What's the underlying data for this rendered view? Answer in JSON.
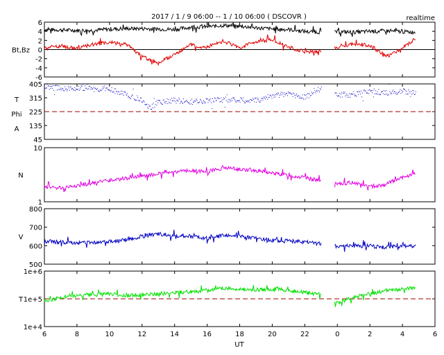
{
  "chart_data": {
    "type": "line",
    "title": "2017 / 1 / 9   06:00 --  1 / 10  06:00 ( DSCOVR )",
    "subtitle": "realtime",
    "xlabel": "UT",
    "x_ticks": [
      "6",
      "8",
      "10",
      "12",
      "14",
      "16",
      "18",
      "20",
      "22",
      "0",
      "2",
      "4",
      "6"
    ],
    "data_gap_hours": [
      23.0,
      23.8
    ],
    "panels": [
      {
        "id": "bt-bz",
        "ylabel": "Bt,Bz",
        "ylim": [
          -6,
          6
        ],
        "y_ticks": [
          "6",
          "4",
          "2",
          "0",
          "-2",
          "-4",
          "-6"
        ],
        "reference_line": {
          "value": 0,
          "style": "solid",
          "color": "#000000"
        },
        "series": [
          {
            "name": "Bt",
            "color": "#000000",
            "x": [
              6,
              7,
              8,
              9,
              10,
              11,
              12,
              13,
              14,
              15,
              16,
              17,
              18,
              19,
              20,
              21,
              22,
              23,
              24,
              25,
              26,
              27,
              28,
              28.8
            ],
            "values": [
              4.4,
              4.3,
              4.2,
              4.2,
              4.5,
              4.6,
              4.6,
              4.5,
              4.4,
              4.9,
              5.0,
              5.3,
              5.1,
              4.8,
              4.5,
              4.4,
              4.0,
              3.8,
              3.9,
              3.8,
              4.0,
              4.1,
              3.9,
              3.8
            ]
          },
          {
            "name": "Bz",
            "color": "#e00000",
            "x": [
              6,
              7,
              8,
              9,
              10,
              11,
              12,
              13,
              14,
              15,
              16,
              17,
              18,
              19,
              20,
              21,
              22,
              23,
              24,
              25,
              26,
              27,
              28,
              28.8
            ],
            "values": [
              0.5,
              0.8,
              0.2,
              1.2,
              1.5,
              1.3,
              -1.5,
              -3.0,
              -1.0,
              1.0,
              0.5,
              2.0,
              0.3,
              1.8,
              2.2,
              0.5,
              -0.5,
              -0.3,
              0.5,
              1.2,
              1.0,
              -1.5,
              0.3,
              2.5
            ]
          }
        ]
      },
      {
        "id": "theta-phi",
        "ylabel_lines": [
          "T",
          "Phi",
          "A"
        ],
        "ylim": [
          45,
          405
        ],
        "y_ticks": [
          "405",
          "315",
          "225",
          "135",
          "45"
        ],
        "reference_line": {
          "value": 225,
          "style": "dashed",
          "color": "#a00000"
        },
        "series": [
          {
            "name": "",
            "color": "#0000c0",
            "x": [
              6,
              7,
              8,
              9,
              10,
              11,
              12,
              12.5,
              13,
              14,
              15,
              16,
              17,
              18,
              19,
              20,
              21,
              22,
              23,
              24,
              25,
              26,
              27,
              28,
              28.8
            ],
            "values": [
              385,
              380,
              378,
              375,
              370,
              340,
              300,
              250,
              290,
              300,
              290,
              295,
              305,
              300,
              300,
              330,
              345,
              320,
              380,
              335,
              340,
              360,
              350,
              360,
              345
            ]
          }
        ]
      },
      {
        "id": "density",
        "ylabel": "N",
        "ylim": [
          1,
          10
        ],
        "log": true,
        "y_ticks": [
          "10",
          "1"
        ],
        "series": [
          {
            "name": "",
            "color": "#e000e0",
            "x": [
              6,
              7,
              8,
              9,
              10,
              11,
              12,
              13,
              14,
              15,
              16,
              17,
              18,
              19,
              20,
              21,
              22,
              23,
              24,
              25,
              26,
              27,
              28,
              28.8
            ],
            "values": [
              1.9,
              1.8,
              2.0,
              2.2,
              2.5,
              2.7,
              3.0,
              3.3,
              3.5,
              3.8,
              3.6,
              4.2,
              4.0,
              3.8,
              3.4,
              3.1,
              2.8,
              2.4,
              2.1,
              2.3,
              1.9,
              2.1,
              2.8,
              3.3
            ]
          }
        ]
      },
      {
        "id": "velocity",
        "ylabel": "V",
        "ylim": [
          500,
          800
        ],
        "y_ticks": [
          "800",
          "700",
          "600",
          "500"
        ],
        "series": [
          {
            "name": "",
            "color": "#0000c0",
            "x": [
              6,
              7,
              8,
              9,
              10,
              11,
              12,
              13,
              14,
              15,
              16,
              17,
              18,
              19,
              20,
              21,
              22,
              23,
              24,
              25,
              26,
              27,
              28,
              28.8
            ],
            "values": [
              625,
              618,
              615,
              618,
              622,
              630,
              650,
              665,
              655,
              650,
              640,
              655,
              650,
              640,
              630,
              625,
              620,
              610,
              595,
              600,
              598,
              590,
              600,
              598
            ]
          }
        ]
      },
      {
        "id": "temperature",
        "ylabel": "T",
        "ylim": [
          10000,
          1000000
        ],
        "log": true,
        "y_ticks": [
          "1e+6",
          "1e+5",
          "1e+4"
        ],
        "reference_line": {
          "value": 100000,
          "style": "dashed",
          "color": "#a00000"
        },
        "series": [
          {
            "name": "",
            "color": "#00e000",
            "x": [
              6,
              7,
              8,
              9,
              10,
              11,
              12,
              13,
              14,
              15,
              16,
              17,
              18,
              19,
              20,
              21,
              22,
              23,
              24,
              25,
              26,
              27,
              28,
              28.8
            ],
            "values": [
              85000,
              110000,
              130000,
              140000,
              150000,
              130000,
              140000,
              150000,
              170000,
              180000,
              200000,
              250000,
              220000,
              210000,
              230000,
              200000,
              170000,
              140000,
              70000,
              110000,
              150000,
              200000,
              220000,
              250000
            ]
          }
        ]
      }
    ]
  }
}
